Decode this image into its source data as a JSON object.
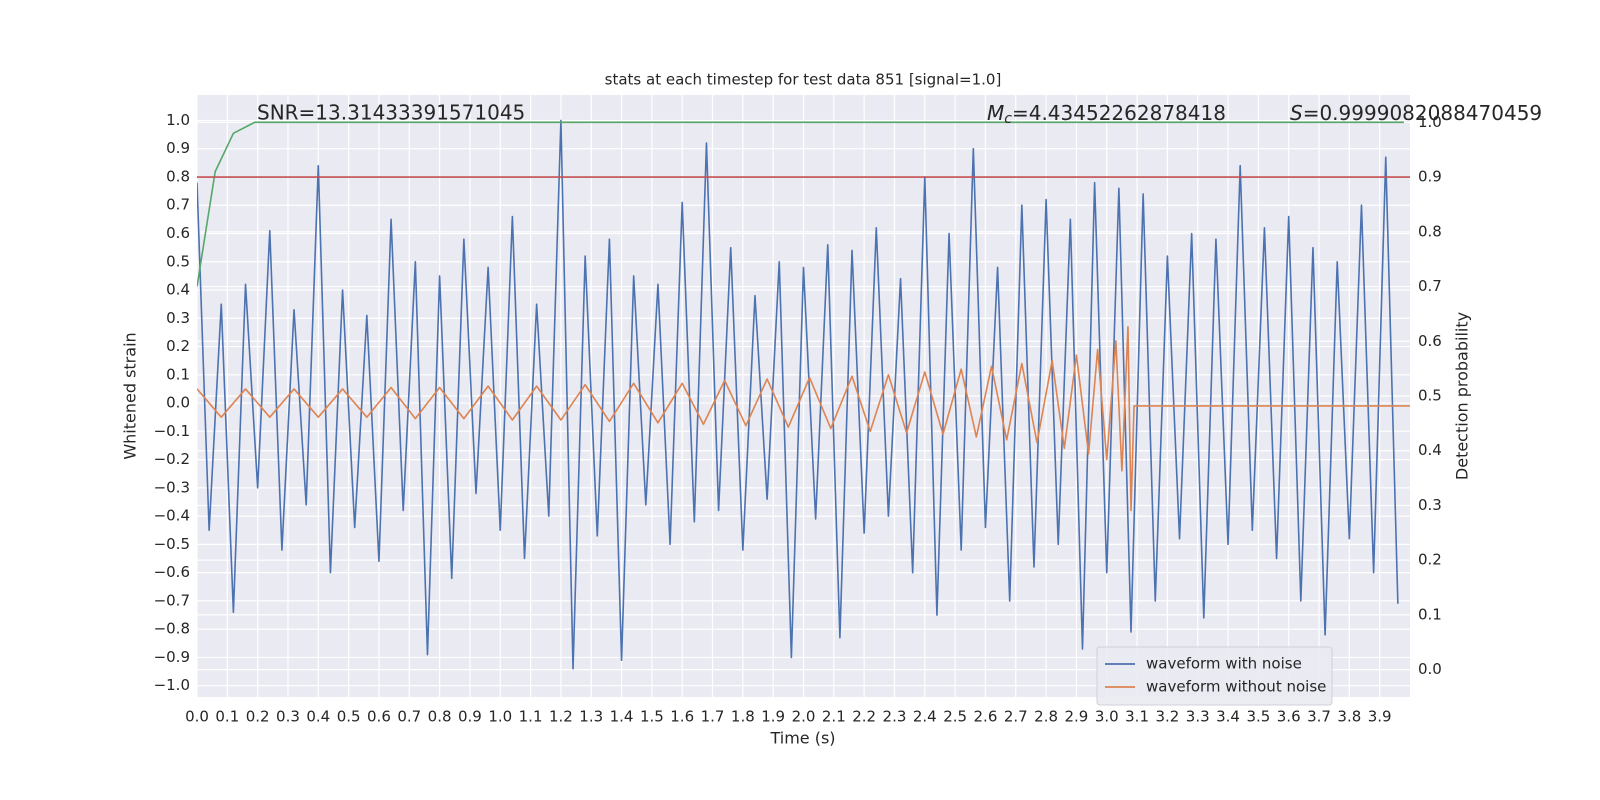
{
  "chart_data": {
    "type": "line",
    "title": "stats at each timestep for test data 851 [signal=1.0]",
    "x_label": "Time (s)",
    "y_label": "Whitened strain",
    "y2_label": "Detection probability",
    "annotations": {
      "snr": "SNR=13.31433391571045",
      "mc": {
        "symbol": "M",
        "subscript": "c",
        "text": "=4.43452262878418"
      },
      "s": {
        "symbol": "S",
        "text": "=0.9999082088470459"
      }
    },
    "xlim": [
      0,
      4
    ],
    "ylim": [
      -1.04,
      1.09
    ],
    "y2lim": [
      -0.05,
      1.05
    ],
    "grid": true,
    "y2grid": true,
    "legend": "lower right",
    "xticks": [
      {
        "value": 0,
        "label": "0.0"
      },
      {
        "value": 0.1,
        "label": "0.1"
      },
      {
        "value": 0.2,
        "label": "0.2"
      },
      {
        "value": 0.3,
        "label": "0.3"
      },
      {
        "value": 0.4,
        "label": "0.4"
      },
      {
        "value": 0.5,
        "label": "0.5"
      },
      {
        "value": 0.6,
        "label": "0.6"
      },
      {
        "value": 0.7,
        "label": "0.7"
      },
      {
        "value": 0.8,
        "label": "0.8"
      },
      {
        "value": 0.9,
        "label": "0.9"
      },
      {
        "value": 1,
        "label": "1.0"
      },
      {
        "value": 1.1,
        "label": "1.1"
      },
      {
        "value": 1.2,
        "label": "1.2"
      },
      {
        "value": 1.3,
        "label": "1.3"
      },
      {
        "value": 1.4,
        "label": "1.4"
      },
      {
        "value": 1.5,
        "label": "1.5"
      },
      {
        "value": 1.6,
        "label": "1.6"
      },
      {
        "value": 1.7,
        "label": "1.7"
      },
      {
        "value": 1.8,
        "label": "1.8"
      },
      {
        "value": 1.9,
        "label": "1.9"
      },
      {
        "value": 2,
        "label": "2.0"
      },
      {
        "value": 2.1,
        "label": "2.1"
      },
      {
        "value": 2.2,
        "label": "2.2"
      },
      {
        "value": 2.3,
        "label": "2.3"
      },
      {
        "value": 2.4,
        "label": "2.4"
      },
      {
        "value": 2.5,
        "label": "2.5"
      },
      {
        "value": 2.6,
        "label": "2.6"
      },
      {
        "value": 2.7,
        "label": "2.7"
      },
      {
        "value": 2.8,
        "label": "2.8"
      },
      {
        "value": 2.9,
        "label": "2.9"
      },
      {
        "value": 3,
        "label": "3.0"
      },
      {
        "value": 3.1,
        "label": "3.1"
      },
      {
        "value": 3.2,
        "label": "3.2"
      },
      {
        "value": 3.3,
        "label": "3.3"
      },
      {
        "value": 3.4,
        "label": "3.4"
      },
      {
        "value": 3.5,
        "label": "3.5"
      },
      {
        "value": 3.6,
        "label": "3.6"
      },
      {
        "value": 3.7,
        "label": "3.7"
      },
      {
        "value": 3.8,
        "label": "3.8"
      },
      {
        "value": 3.9,
        "label": "3.9"
      }
    ],
    "yticks": [
      {
        "value": -1,
        "label": "−1.0"
      },
      {
        "value": -0.9,
        "label": "−0.9"
      },
      {
        "value": -0.8,
        "label": "−0.8"
      },
      {
        "value": -0.7,
        "label": "−0.7"
      },
      {
        "value": -0.6,
        "label": "−0.6"
      },
      {
        "value": -0.5,
        "label": "−0.5"
      },
      {
        "value": -0.4,
        "label": "−0.4"
      },
      {
        "value": -0.3,
        "label": "−0.3"
      },
      {
        "value": -0.2,
        "label": "−0.2"
      },
      {
        "value": -0.1,
        "label": "−0.1"
      },
      {
        "value": 0,
        "label": "0.0"
      },
      {
        "value": 0.1,
        "label": "0.1"
      },
      {
        "value": 0.2,
        "label": "0.2"
      },
      {
        "value": 0.3,
        "label": "0.3"
      },
      {
        "value": 0.4,
        "label": "0.4"
      },
      {
        "value": 0.5,
        "label": "0.5"
      },
      {
        "value": 0.6,
        "label": "0.6"
      },
      {
        "value": 0.7,
        "label": "0.7"
      },
      {
        "value": 0.8,
        "label": "0.8"
      },
      {
        "value": 0.9,
        "label": "0.9"
      },
      {
        "value": 1,
        "label": "1.0"
      }
    ],
    "y2ticks": [
      {
        "value": 0,
        "label": "0.0"
      },
      {
        "value": 0.1,
        "label": "0.1"
      },
      {
        "value": 0.2,
        "label": "0.2"
      },
      {
        "value": 0.3,
        "label": "0.3"
      },
      {
        "value": 0.4,
        "label": "0.4"
      },
      {
        "value": 0.5,
        "label": "0.5"
      },
      {
        "value": 0.6,
        "label": "0.6"
      },
      {
        "value": 0.7,
        "label": "0.7"
      },
      {
        "value": 0.8,
        "label": "0.8"
      },
      {
        "value": 0.9,
        "label": "0.9"
      },
      {
        "value": 1,
        "label": "1.0"
      }
    ],
    "series": [
      {
        "name": "waveform with noise",
        "color": "#4c72b0",
        "x": [
          0,
          0.04,
          0.08,
          0.12,
          0.16,
          0.2,
          0.24,
          0.28,
          0.32,
          0.36,
          0.4,
          0.44,
          0.48,
          0.52,
          0.56,
          0.6,
          0.64,
          0.68,
          0.72,
          0.76,
          0.8,
          0.84,
          0.88,
          0.92,
          0.96,
          1,
          1.04,
          1.08,
          1.12,
          1.16,
          1.2,
          1.24,
          1.28,
          1.32,
          1.36,
          1.4,
          1.44,
          1.48,
          1.52,
          1.56,
          1.6,
          1.64,
          1.68,
          1.72,
          1.76,
          1.8,
          1.84,
          1.88,
          1.92,
          1.96,
          2,
          2.04,
          2.08,
          2.12,
          2.16,
          2.2,
          2.24,
          2.28,
          2.32,
          2.36,
          2.4,
          2.44,
          2.48,
          2.52,
          2.56,
          2.6,
          2.64,
          2.68,
          2.72,
          2.76,
          2.8,
          2.84,
          2.88,
          2.92,
          2.96,
          3,
          3.04,
          3.08,
          3.12,
          3.16,
          3.2,
          3.24,
          3.28,
          3.32,
          3.36,
          3.4,
          3.44,
          3.48,
          3.52,
          3.56,
          3.6,
          3.64,
          3.68,
          3.72,
          3.76,
          3.8,
          3.84,
          3.88,
          3.92,
          3.96
        ],
        "values": [
          0.78,
          -0.45,
          0.35,
          -0.74,
          0.42,
          -0.3,
          0.61,
          -0.52,
          0.33,
          -0.36,
          0.84,
          -0.6,
          0.4,
          -0.44,
          0.31,
          -0.56,
          0.65,
          -0.38,
          0.5,
          -0.89,
          0.45,
          -0.62,
          0.58,
          -0.32,
          0.48,
          -0.45,
          0.66,
          -0.55,
          0.35,
          -0.4,
          1.0,
          -0.94,
          0.52,
          -0.47,
          0.58,
          -0.91,
          0.45,
          -0.36,
          0.42,
          -0.5,
          0.71,
          -0.42,
          0.92,
          -0.38,
          0.55,
          -0.52,
          0.38,
          -0.34,
          0.5,
          -0.9,
          0.48,
          -0.41,
          0.56,
          -0.83,
          0.54,
          -0.46,
          0.62,
          -0.4,
          0.44,
          -0.6,
          0.8,
          -0.75,
          0.6,
          -0.52,
          0.9,
          -0.44,
          0.48,
          -0.7,
          0.7,
          -0.58,
          0.72,
          -0.5,
          0.65,
          -0.87,
          0.78,
          -0.6,
          0.76,
          -0.81,
          0.74,
          -0.7,
          0.52,
          -0.48,
          0.6,
          -0.76,
          0.58,
          -0.5,
          0.84,
          -0.45,
          0.62,
          -0.55,
          0.66,
          -0.7,
          0.55,
          -0.82,
          0.5,
          -0.48,
          0.7,
          -0.6,
          0.87,
          -0.71
        ]
      },
      {
        "name": "waveform without noise",
        "color": "#dd8452",
        "x": [
          0,
          0.08,
          0.16,
          0.24,
          0.32,
          0.4,
          0.48,
          0.56,
          0.64,
          0.72,
          0.8,
          0.88,
          0.96,
          1.04,
          1.12,
          1.2,
          1.28,
          1.36,
          1.44,
          1.52,
          1.6,
          1.67,
          1.74,
          1.81,
          1.88,
          1.95,
          2.02,
          2.09,
          2.16,
          2.22,
          2.28,
          2.34,
          2.4,
          2.46,
          2.52,
          2.57,
          2.62,
          2.67,
          2.72,
          2.77,
          2.82,
          2.86,
          2.9,
          2.94,
          2.97,
          3,
          3.03,
          3.05,
          3.07,
          3.08,
          3.09,
          4
        ],
        "values": [
          0.05,
          -0.05,
          0.05,
          -0.05,
          0.05,
          -0.05,
          0.05,
          -0.05,
          0.055,
          -0.055,
          0.055,
          -0.055,
          0.06,
          -0.06,
          0.06,
          -0.06,
          0.065,
          -0.065,
          0.07,
          -0.07,
          0.07,
          -0.075,
          0.08,
          -0.08,
          0.085,
          -0.085,
          0.09,
          -0.09,
          0.095,
          -0.1,
          0.1,
          -0.105,
          0.11,
          -0.11,
          0.12,
          -0.12,
          0.13,
          -0.13,
          0.14,
          -0.14,
          0.15,
          -0.16,
          0.17,
          -0.18,
          0.19,
          -0.2,
          0.22,
          -0.24,
          0.27,
          -0.38,
          -0.01,
          -0.01
        ]
      },
      {
        "color": "#55a868",
        "axis": "y2",
        "x": [
          0,
          0.06,
          0.12,
          0.19,
          0.25,
          3.98
        ],
        "values": [
          0.7,
          0.91,
          0.98,
          1.0,
          1.0,
          1.0
        ]
      },
      {
        "color": "#c44e52",
        "axis": "y2",
        "x": [
          0,
          4
        ],
        "values": [
          0.9,
          0.9
        ]
      }
    ]
  }
}
